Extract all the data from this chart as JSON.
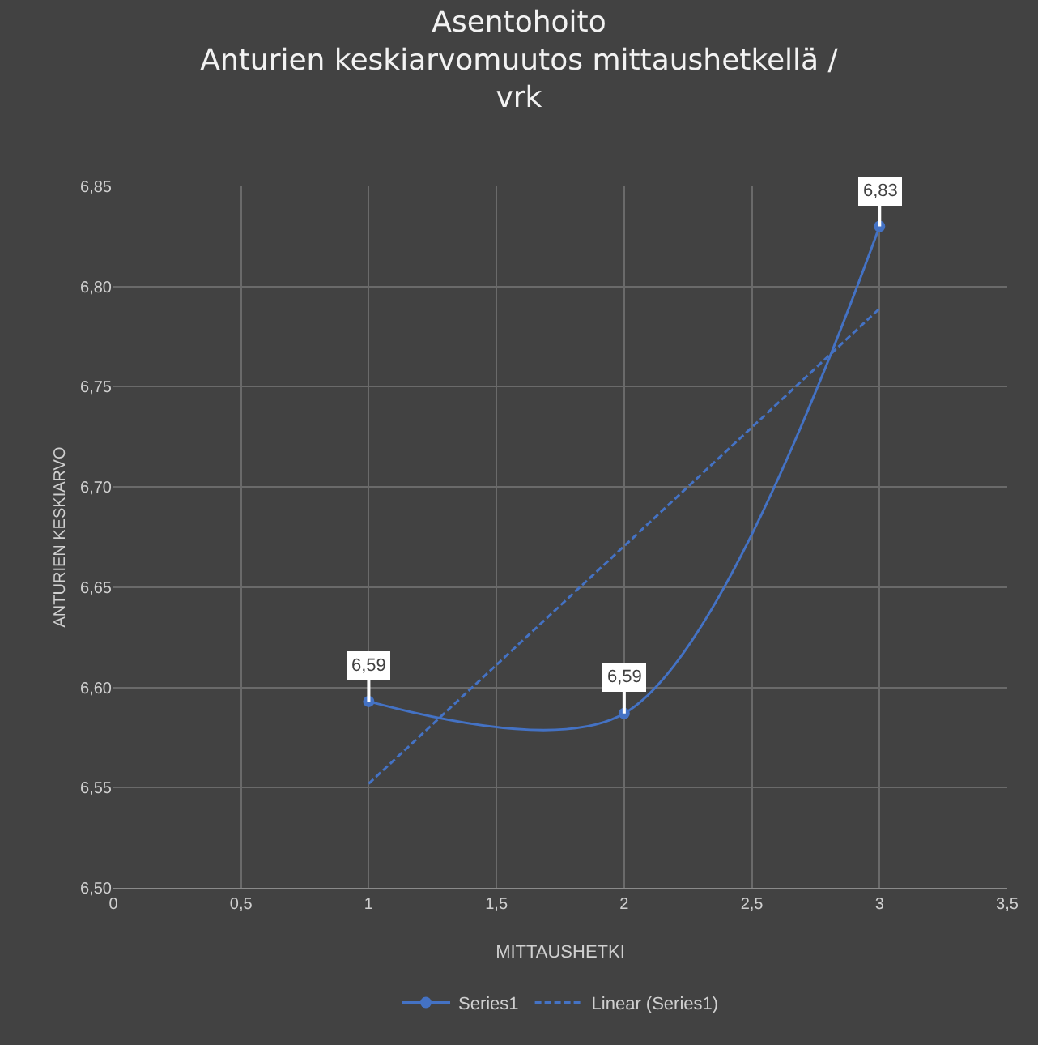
{
  "chart_data": {
    "type": "line",
    "title": "Asentohoito\nAnturien keskiarvomuutos mittaushetkellä /\nvrk",
    "xlabel": "MITTAUSHETKI",
    "ylabel": "ANTURIEN KESKIARVO",
    "x": [
      1,
      2,
      3
    ],
    "series": [
      {
        "name": "Series1",
        "color": "#4472c4",
        "values": [
          6.593,
          6.587,
          6.83
        ],
        "value_labels": [
          "6,59",
          "6,59",
          "6,83"
        ],
        "marker": "circle",
        "line_style": "solid"
      },
      {
        "name": "Linear (Series1)",
        "color": "#4472c4",
        "x": [
          1,
          3
        ],
        "values": [
          6.552,
          6.789
        ],
        "marker": "none",
        "line_style": "dashed"
      }
    ],
    "xlim": [
      0,
      3.5
    ],
    "xticks": [
      0,
      {
        "value": 0.5,
        "label": "0,5"
      },
      1,
      {
        "value": 1.5,
        "label": "1,5"
      },
      2,
      {
        "value": 2.5,
        "label": "2,5"
      },
      3,
      {
        "value": 3.5,
        "label": "3,5"
      }
    ],
    "ylim": [
      6.5,
      6.85
    ],
    "yticks": [
      {
        "value": 6.5,
        "label": "6,50"
      },
      {
        "value": 6.55,
        "label": "6,55"
      },
      {
        "value": 6.6,
        "label": "6,60"
      },
      {
        "value": 6.65,
        "label": "6,65"
      },
      {
        "value": 6.7,
        "label": "6,70"
      },
      {
        "value": 6.75,
        "label": "6,75"
      },
      {
        "value": 6.8,
        "label": "6,80"
      },
      {
        "value": 6.85,
        "label": "6,85"
      }
    ],
    "grid": true,
    "legend": "bottom"
  }
}
